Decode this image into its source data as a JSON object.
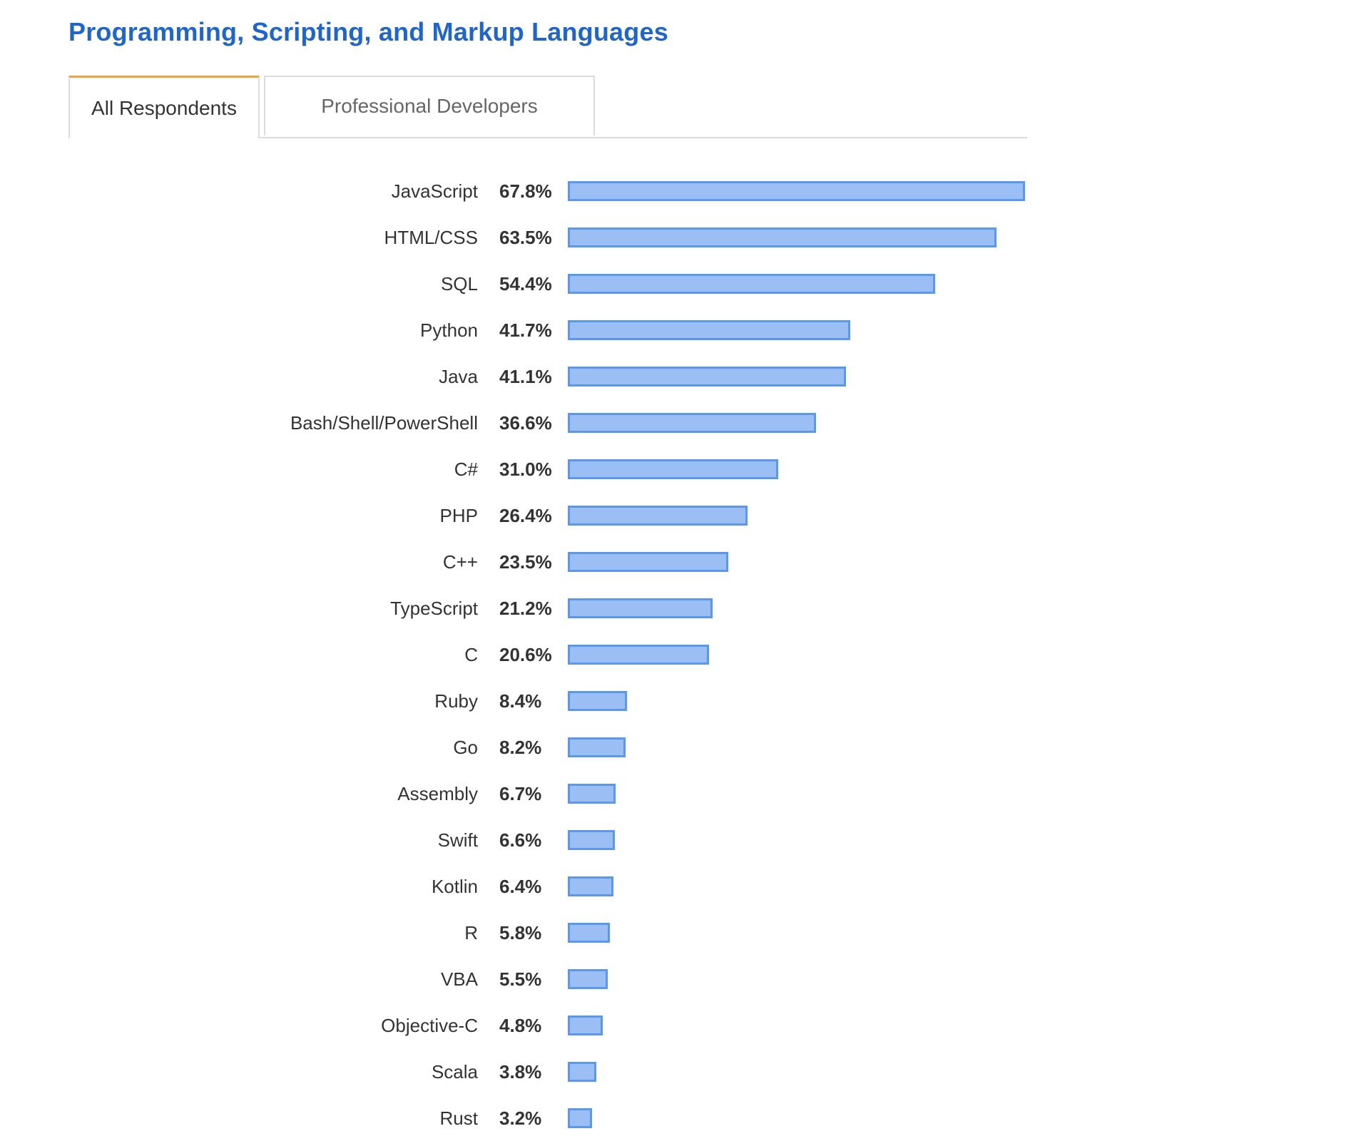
{
  "page": {
    "title": "Programming, Scripting, and Markup Languages"
  },
  "tabs": [
    {
      "label": "All Respondents",
      "active": true
    },
    {
      "label": "Professional Developers",
      "active": false
    }
  ],
  "colors": {
    "title": "#1f66cc",
    "active_tab_accent": "#f0a33a",
    "bar_fill": "#9bbff5",
    "bar_border": "#5c98ea"
  },
  "chart_data": {
    "type": "bar",
    "orientation": "horizontal",
    "categories": [
      "JavaScript",
      "HTML/CSS",
      "SQL",
      "Python",
      "Java",
      "Bash/Shell/PowerShell",
      "C#",
      "PHP",
      "C++",
      "TypeScript",
      "C",
      "Ruby",
      "Go",
      "Assembly",
      "Swift",
      "Kotlin",
      "R",
      "VBA",
      "Objective-C",
      "Scala",
      "Rust"
    ],
    "values": [
      67.8,
      63.5,
      54.4,
      41.7,
      41.1,
      36.6,
      31.0,
      26.4,
      23.5,
      21.2,
      20.6,
      8.4,
      8.2,
      6.7,
      6.6,
      6.4,
      5.8,
      5.5,
      4.8,
      3.8,
      3.2
    ],
    "value_labels": [
      "67.8%",
      "63.5%",
      "54.4%",
      "41.7%",
      "41.1%",
      "36.6%",
      "31.0%",
      "26.4%",
      "23.5%",
      "21.2%",
      "20.6%",
      "8.4%",
      "8.2%",
      "6.7%",
      "6.6%",
      "6.4%",
      "5.8%",
      "5.5%",
      "4.8%",
      "3.8%",
      "3.2%"
    ],
    "unit": "%",
    "title": "",
    "xlabel": "",
    "ylabel": "",
    "grid": false,
    "legend": "none"
  }
}
